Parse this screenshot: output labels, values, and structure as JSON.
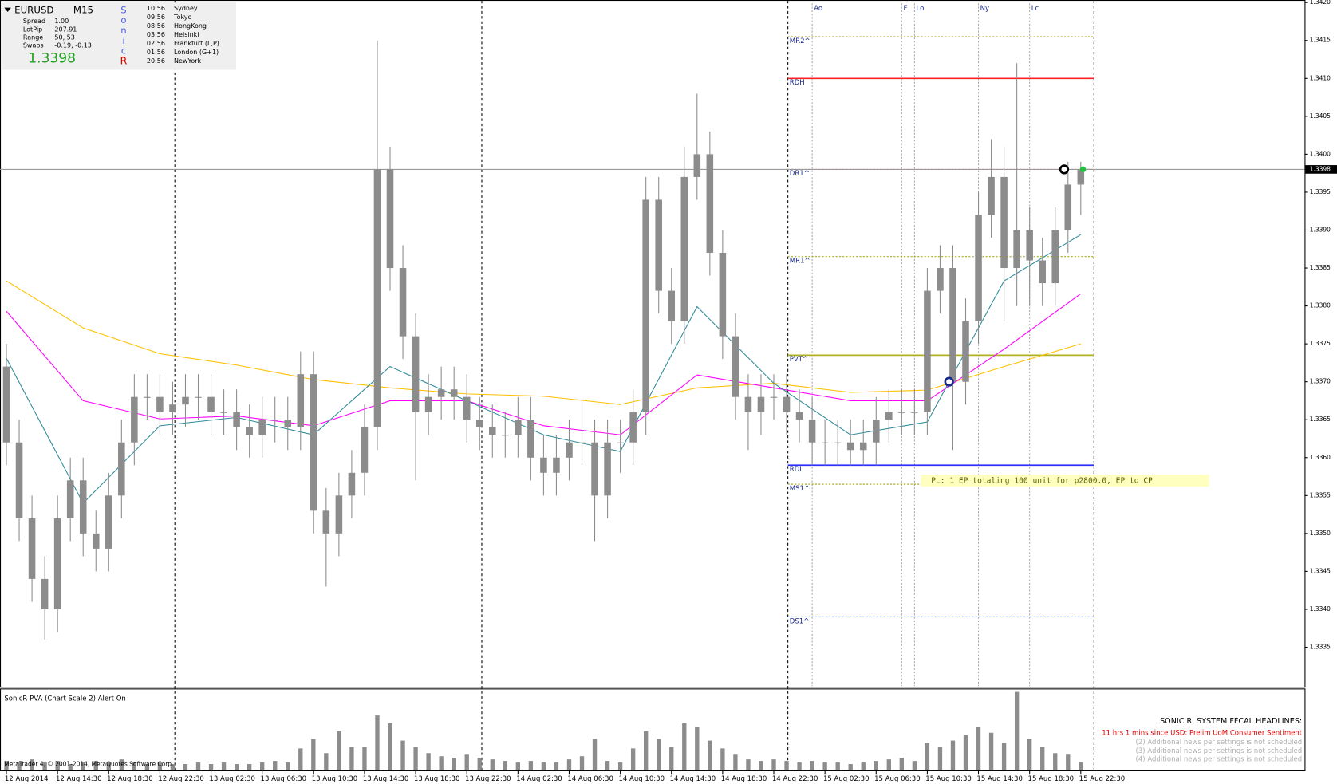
{
  "info": {
    "symbol": "EURUSD",
    "timeframe": "M15",
    "rows": [
      {
        "label": "Spread",
        "value": "1.00"
      },
      {
        "label": "LotPip",
        "value": "207.91"
      },
      {
        "label": "Range",
        "value": "50, 53"
      },
      {
        "label": "Swaps",
        "value": "-0.19, -0.13"
      }
    ],
    "price": "1.3398",
    "sonic": [
      "S",
      "o",
      "n",
      "i",
      "c",
      "R"
    ],
    "sessions": [
      {
        "time": "10:56",
        "city": "Sydney"
      },
      {
        "time": "09:56",
        "city": "Tokyo"
      },
      {
        "time": "08:56",
        "city": "HongKong"
      },
      {
        "time": "03:56",
        "city": "Helsinki"
      },
      {
        "time": "02:56",
        "city": "Frankfurt  (L,P)"
      },
      {
        "time": "01:56",
        "city": "London  (G+1)"
      },
      {
        "time": "20:56",
        "city": "NewYork"
      }
    ]
  },
  "indicator": {
    "title": "SonicR PVA  (Chart Scale 2)   Alert On",
    "headlines_title": "SONIC R. SYSTEM  FFCAL HEADLINES:",
    "headline": "11 hrs 1 mins since USD: Prelim UoM Consumer Sentiment",
    "notes": [
      "(2)  Additional news per settings is not scheduled",
      "(3)  Additional news per settings is not scheduled",
      "(4)  Additional news per settings is not scheduled"
    ],
    "copyright": "MetaTrader 4, © 2001-2014, MetaQuotes Software Corp."
  },
  "chart_data": {
    "type": "candlestick",
    "color": "#8c8c8c",
    "x": [
      0,
      1,
      2,
      3,
      4,
      5,
      6,
      7,
      8,
      9,
      10,
      11,
      12,
      13,
      14,
      15,
      16,
      17,
      18,
      19,
      20,
      21,
      22,
      23,
      24,
      25,
      26,
      27,
      28,
      29,
      30,
      31,
      32,
      33,
      34,
      35,
      36,
      37,
      38,
      39,
      40,
      41,
      42,
      43,
      44,
      45,
      46,
      47,
      48,
      49,
      50,
      51,
      52,
      53,
      54,
      55,
      56,
      57,
      58,
      59,
      60,
      61,
      62,
      63,
      64,
      65,
      66,
      67,
      68,
      69,
      70,
      71,
      72,
      73,
      74,
      75,
      76,
      77,
      78,
      79,
      80,
      81,
      82,
      83,
      84
    ],
    "open": [
      1.3372,
      1.3362,
      1.3352,
      1.3344,
      1.334,
      1.3352,
      1.3357,
      1.335,
      1.3348,
      1.3355,
      1.3362,
      1.3368,
      1.3368,
      1.3366,
      1.3367,
      1.3368,
      1.3368,
      1.3366,
      1.3366,
      1.3364,
      1.3363,
      1.3365,
      1.3365,
      1.3364,
      1.3371,
      1.3353,
      1.335,
      1.3355,
      1.3358,
      1.3364,
      1.3398,
      1.3385,
      1.3376,
      1.3366,
      1.3368,
      1.3369,
      1.3368,
      1.3365,
      1.3364,
      1.3363,
      1.3363,
      1.3365,
      1.336,
      1.3358,
      1.336,
      1.3362,
      1.3362,
      1.3355,
      1.3362,
      1.3362,
      1.3366,
      1.3394,
      1.3382,
      1.3378,
      1.3397,
      1.34,
      1.3387,
      1.3376,
      1.3368,
      1.3366,
      1.3368,
      1.3368,
      1.3366,
      1.3365,
      1.3362,
      1.3362,
      1.3362,
      1.3361,
      1.3362,
      1.3365,
      1.3366,
      1.3366,
      1.3366,
      1.3382,
      1.3385,
      1.337,
      1.3378,
      1.3392,
      1.3397,
      1.3385,
      1.339,
      1.3386,
      1.3383,
      1.339,
      1.3396
    ],
    "high": [
      1.3375,
      1.3365,
      1.3355,
      1.3347,
      1.3355,
      1.336,
      1.336,
      1.3353,
      1.3358,
      1.3365,
      1.3371,
      1.3371,
      1.3371,
      1.337,
      1.3371,
      1.3371,
      1.3371,
      1.3369,
      1.3369,
      1.3367,
      1.3368,
      1.3368,
      1.3368,
      1.3374,
      1.3374,
      1.3356,
      1.3358,
      1.3361,
      1.3367,
      1.3415,
      1.3401,
      1.3388,
      1.3379,
      1.3371,
      1.3372,
      1.3372,
      1.3371,
      1.3368,
      1.3367,
      1.3366,
      1.3368,
      1.3368,
      1.3363,
      1.3363,
      1.3365,
      1.3368,
      1.3365,
      1.3365,
      1.3365,
      1.3369,
      1.3397,
      1.3397,
      1.3385,
      1.3401,
      1.3408,
      1.3403,
      1.339,
      1.3379,
      1.3371,
      1.3371,
      1.3371,
      1.3371,
      1.3369,
      1.3368,
      1.3365,
      1.3365,
      1.3365,
      1.3365,
      1.3368,
      1.3369,
      1.3369,
      1.3369,
      1.3385,
      1.3388,
      1.3388,
      1.3381,
      1.3395,
      1.3402,
      1.3401,
      1.3412,
      1.3393,
      1.3389,
      1.3393,
      1.3399,
      1.3399
    ],
    "low": [
      1.3359,
      1.3349,
      1.3341,
      1.3336,
      1.3337,
      1.3349,
      1.3347,
      1.3345,
      1.3345,
      1.3352,
      1.3359,
      1.3365,
      1.3363,
      1.3363,
      1.3364,
      1.3365,
      1.3363,
      1.3363,
      1.3361,
      1.336,
      1.336,
      1.3362,
      1.3361,
      1.3361,
      1.335,
      1.3343,
      1.3347,
      1.3352,
      1.3355,
      1.3361,
      1.3382,
      1.3373,
      1.3357,
      1.3363,
      1.3365,
      1.3365,
      1.3362,
      1.3361,
      1.336,
      1.336,
      1.336,
      1.3357,
      1.3355,
      1.3355,
      1.3357,
      1.3359,
      1.3349,
      1.3352,
      1.3358,
      1.3359,
      1.3363,
      1.3379,
      1.3375,
      1.3375,
      1.3394,
      1.3384,
      1.3373,
      1.3365,
      1.3361,
      1.3363,
      1.3365,
      1.3363,
      1.3362,
      1.3359,
      1.3359,
      1.3359,
      1.3359,
      1.3359,
      1.3359,
      1.3362,
      1.3363,
      1.3363,
      1.3363,
      1.3379,
      1.3361,
      1.3367,
      1.3375,
      1.3389,
      1.3378,
      1.338,
      1.338,
      1.338,
      1.338,
      1.3387,
      1.3392
    ],
    "close": [
      1.3362,
      1.3352,
      1.3344,
      1.334,
      1.3352,
      1.3357,
      1.335,
      1.3348,
      1.3355,
      1.3362,
      1.3368,
      1.3368,
      1.3366,
      1.3367,
      1.3368,
      1.3368,
      1.3366,
      1.3366,
      1.3364,
      1.3363,
      1.3365,
      1.3365,
      1.3364,
      1.3371,
      1.3353,
      1.335,
      1.3355,
      1.3358,
      1.3364,
      1.3398,
      1.3385,
      1.3376,
      1.3366,
      1.3368,
      1.3369,
      1.3368,
      1.3365,
      1.3364,
      1.3363,
      1.3363,
      1.3365,
      1.336,
      1.3358,
      1.336,
      1.3362,
      1.3362,
      1.3355,
      1.3362,
      1.3362,
      1.3366,
      1.3394,
      1.3382,
      1.3378,
      1.3397,
      1.34,
      1.3387,
      1.3376,
      1.3368,
      1.3366,
      1.3368,
      1.3368,
      1.3366,
      1.3365,
      1.3362,
      1.3362,
      1.3362,
      1.3361,
      1.3362,
      1.3365,
      1.3366,
      1.3366,
      1.3366,
      1.3382,
      1.3385,
      1.337,
      1.3378,
      1.3392,
      1.3397,
      1.3385,
      1.339,
      1.3386,
      1.3383,
      1.339,
      1.3396,
      1.3398
    ],
    "volume": [
      12,
      10,
      14,
      10,
      12,
      8,
      10,
      12,
      10,
      14,
      10,
      8,
      10,
      8,
      8,
      10,
      8,
      10,
      8,
      8,
      10,
      12,
      10,
      28,
      40,
      22,
      50,
      30,
      30,
      70,
      60,
      38,
      30,
      22,
      18,
      16,
      20,
      16,
      14,
      12,
      10,
      12,
      10,
      10,
      14,
      18,
      40,
      12,
      10,
      28,
      50,
      40,
      30,
      60,
      55,
      38,
      28,
      20,
      14,
      12,
      14,
      12,
      10,
      12,
      10,
      10,
      8,
      10,
      12,
      14,
      16,
      12,
      35,
      30,
      38,
      45,
      55,
      48,
      35,
      100,
      40,
      30,
      22,
      20,
      10
    ],
    "volume_ylim": [
      0,
      100
    ],
    "volume_color": "#8c8c8c",
    "lines": [
      {
        "color": "#ffc000",
        "x": [
          0,
          6,
          12,
          18,
          24,
          30,
          36,
          42,
          48,
          54,
          60,
          66,
          72,
          78,
          84
        ],
        "values": [
          1.33833,
          1.33771,
          1.33737,
          1.33722,
          1.33703,
          1.33692,
          1.33684,
          1.33681,
          1.3367,
          1.33692,
          1.33698,
          1.33686,
          1.33689,
          1.3372,
          1.3375
        ]
      },
      {
        "color": "#ff00ff",
        "x": [
          0,
          6,
          12,
          18,
          24,
          30,
          36,
          42,
          48,
          54,
          60,
          66,
          72,
          78,
          84
        ],
        "values": [
          1.33793,
          1.33675,
          1.33651,
          1.33655,
          1.33642,
          1.33675,
          1.33675,
          1.33642,
          1.3363,
          1.33709,
          1.33692,
          1.33675,
          1.33675,
          1.33743,
          1.33816
        ]
      },
      {
        "color": "#2e8b9a",
        "x": [
          0,
          6,
          12,
          18,
          24,
          30,
          36,
          42,
          48,
          54,
          60,
          66,
          72,
          78,
          84
        ],
        "values": [
          1.33731,
          1.3354,
          1.33642,
          1.33653,
          1.3363,
          1.3372,
          1.33675,
          1.3363,
          1.33608,
          1.33799,
          1.33698,
          1.3363,
          1.33647,
          1.33833,
          1.33894
        ]
      }
    ],
    "levels_x": [
      61.1,
      85.03
    ],
    "levels": [
      {
        "label": "MR2^",
        "value": 1.34155,
        "color": "#a0a000",
        "dashed": true
      },
      {
        "label": "RDH",
        "value": 1.341,
        "color": "#ff2020",
        "dashed": false
      },
      {
        "label": "DR1^",
        "value": 1.3398,
        "color": "#ff2020",
        "dashed": true
      },
      {
        "label": "MR1^",
        "value": 1.33865,
        "color": "#a0a000",
        "dashed": true
      },
      {
        "label": "PVT^",
        "value": 1.33735,
        "color": "#b0b020",
        "dashed": false
      },
      {
        "label": "RDL",
        "value": 1.3359,
        "color": "#3030ff",
        "dashed": false
      },
      {
        "label": "MS1^",
        "value": 1.33565,
        "color": "#a0a000",
        "dashed": true
      },
      {
        "label": "DS1^",
        "value": 1.3339,
        "color": "#3030ff",
        "dashed": true
      }
    ],
    "sessions": [
      {
        "label": "Ao",
        "x": 63
      },
      {
        "label": "F",
        "x": 70
      },
      {
        "label": "Lo",
        "x": 71
      },
      {
        "label": "Ny",
        "x": 76
      },
      {
        "label": "Lc",
        "x": 80
      }
    ],
    "day_separators": [
      13.17,
      37.17,
      61.1,
      85.03
    ],
    "last_price": 1.3398,
    "markers": [
      {
        "x": 73.7,
        "value": 1.337,
        "color": "#1a2a8a"
      },
      {
        "x": 82.7,
        "value": 1.3398,
        "color": "#000000"
      }
    ],
    "dot": {
      "x": 84.17,
      "value": 1.3398,
      "color": "#20c040"
    },
    "annotation": "PL: 1 EP totaling 100 unit for p2800.0, EP to CP",
    "xlim": [
      -0.5,
      101.5
    ],
    "ylim": [
      1.333,
      1.342
    ],
    "xticks": [
      {
        "value": 0,
        "label": "12 Aug 2014"
      },
      {
        "value": 4,
        "label": "12 Aug 14:30"
      },
      {
        "value": 8,
        "label": "12 Aug 18:30"
      },
      {
        "value": 12,
        "label": "12 Aug 22:30"
      },
      {
        "value": 16,
        "label": "13 Aug 02:30"
      },
      {
        "value": 20,
        "label": "13 Aug 06:30"
      },
      {
        "value": 24,
        "label": "13 Aug 10:30"
      },
      {
        "value": 28,
        "label": "13 Aug 14:30"
      },
      {
        "value": 32,
        "label": "13 Aug 18:30"
      },
      {
        "value": 36,
        "label": "13 Aug 22:30"
      },
      {
        "value": 40,
        "label": "14 Aug 02:30"
      },
      {
        "value": 44,
        "label": "14 Aug 06:30"
      },
      {
        "value": 48,
        "label": "14 Aug 10:30"
      },
      {
        "value": 52,
        "label": "14 Aug 14:30"
      },
      {
        "value": 56,
        "label": "14 Aug 18:30"
      },
      {
        "value": 60,
        "label": "14 Aug 22:30"
      },
      {
        "value": 64,
        "label": "15 Aug 02:30"
      },
      {
        "value": 68,
        "label": "15 Aug 06:30"
      },
      {
        "value": 72,
        "label": "15 Aug 10:30"
      },
      {
        "value": 76,
        "label": "15 Aug 14:30"
      },
      {
        "value": 80,
        "label": "15 Aug 18:30"
      },
      {
        "value": 84,
        "label": "15 Aug 22:30"
      }
    ],
    "yticks": [
      {
        "value": 1.342,
        "label": "1.3420"
      },
      1.3415,
      {
        "value": 1.341,
        "label": "1.3410"
      },
      1.3405,
      {
        "value": 1.34,
        "label": "1.3400"
      },
      1.3395,
      {
        "value": 1.339,
        "label": "1.3390"
      },
      1.3385,
      {
        "value": 1.338,
        "label": "1.3380"
      },
      1.3375,
      {
        "value": 1.337,
        "label": "1.3370"
      },
      1.3365,
      {
        "value": 1.336,
        "label": "1.3360"
      },
      1.3355,
      {
        "value": 1.335,
        "label": "1.3350"
      },
      1.3345,
      {
        "value": 1.334,
        "label": "1.3340"
      },
      1.3335
    ]
  }
}
